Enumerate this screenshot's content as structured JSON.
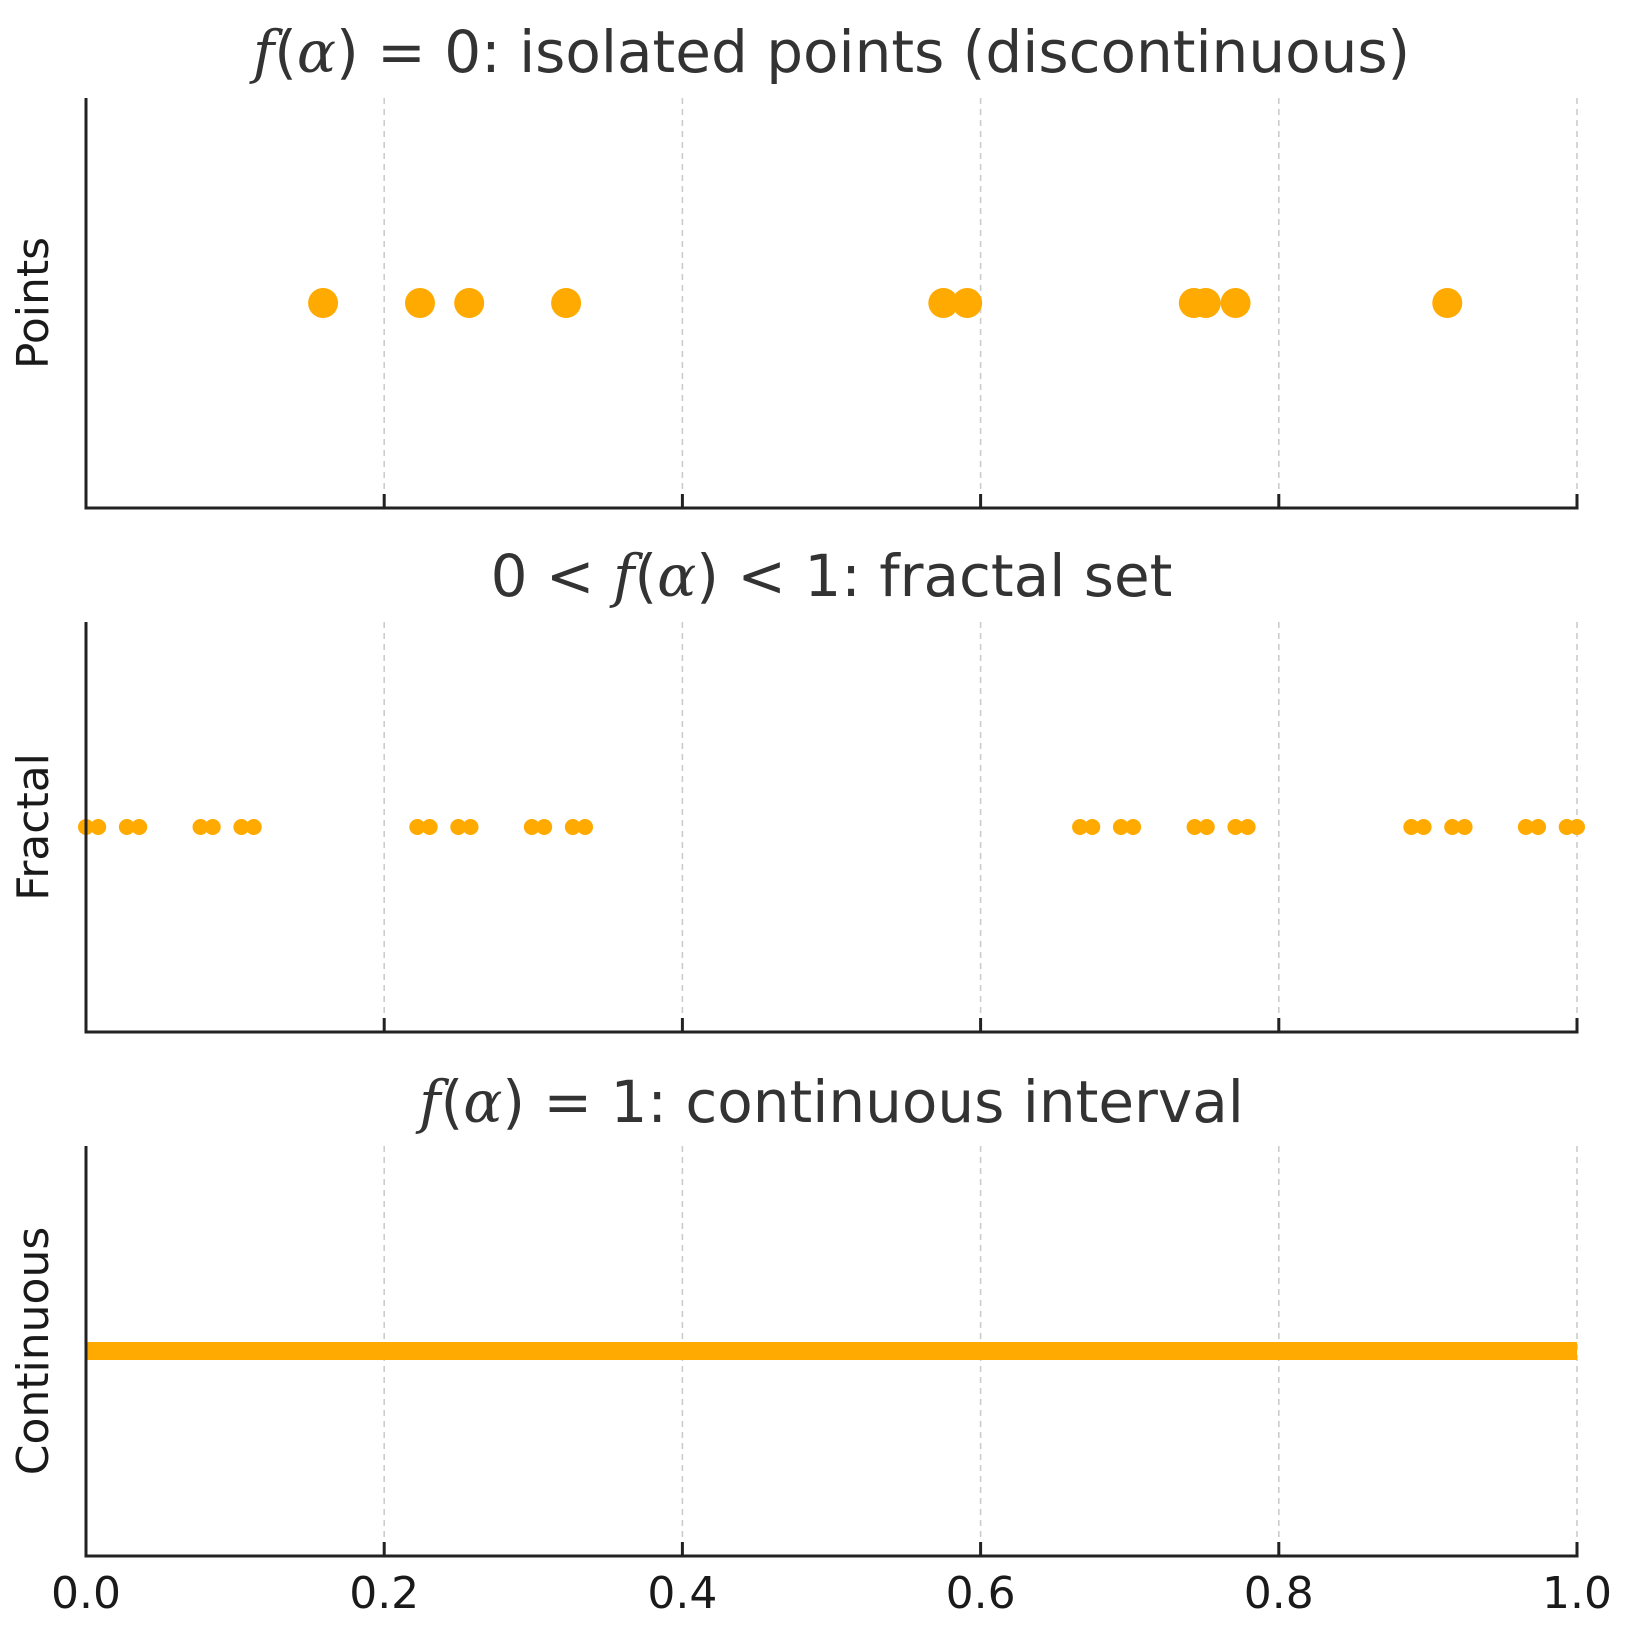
{
  "chart_data": [
    {
      "type": "scatter",
      "title_segments": [
        {
          "text": "f",
          "italic": true
        },
        {
          "text": "(",
          "italic": false
        },
        {
          "text": "α",
          "italic": true
        },
        {
          "text": ") = 0: isolated points (discontinuous)",
          "italic": false
        }
      ],
      "ylabel": "Points",
      "xlim": [
        0,
        1
      ],
      "x": [
        0.159,
        0.224,
        0.257,
        0.322,
        0.575,
        0.591,
        0.743,
        0.751,
        0.771,
        0.913
      ],
      "y": [
        0.5,
        0.5,
        0.5,
        0.5,
        0.5,
        0.5,
        0.5,
        0.5,
        0.5,
        0.5
      ],
      "marker": "large",
      "color": "#FFAA00",
      "grid_x": true,
      "show_x_tick_labels": false
    },
    {
      "type": "scatter",
      "title_segments": [
        {
          "text": "0 < ",
          "italic": false
        },
        {
          "text": "f",
          "italic": true
        },
        {
          "text": "(",
          "italic": false
        },
        {
          "text": "α",
          "italic": true
        },
        {
          "text": ") < 1: fractal set",
          "italic": false
        }
      ],
      "ylabel": "Fractal",
      "xlim": [
        0,
        1
      ],
      "x": [
        0.0,
        0.0082,
        0.0274,
        0.0357,
        0.0768,
        0.085,
        0.1042,
        0.1125,
        0.2222,
        0.2305,
        0.2497,
        0.2579,
        0.299,
        0.3073,
        0.3265,
        0.3347,
        0.6667,
        0.6749,
        0.6941,
        0.7023,
        0.7435,
        0.7517,
        0.7709,
        0.7791,
        0.8889,
        0.8971,
        0.9163,
        0.9246,
        0.9657,
        0.9739,
        0.9931,
        1.0
      ],
      "y": [
        0.5,
        0.5,
        0.5,
        0.5,
        0.5,
        0.5,
        0.5,
        0.5,
        0.5,
        0.5,
        0.5,
        0.5,
        0.5,
        0.5,
        0.5,
        0.5,
        0.5,
        0.5,
        0.5,
        0.5,
        0.5,
        0.5,
        0.5,
        0.5,
        0.5,
        0.5,
        0.5,
        0.5,
        0.5,
        0.5,
        0.5,
        0.5
      ],
      "marker": "small",
      "color": "#FFAA00",
      "grid_x": true,
      "show_x_tick_labels": false
    },
    {
      "type": "line",
      "title_segments": [
        {
          "text": "f",
          "italic": true
        },
        {
          "text": "(",
          "italic": false
        },
        {
          "text": "α",
          "italic": true
        },
        {
          "text": ") = 1: continuous interval",
          "italic": false
        }
      ],
      "ylabel": "Continuous",
      "xlim": [
        0,
        1
      ],
      "x": [
        0,
        1
      ],
      "y": [
        0.5,
        0.5
      ],
      "color": "#FFAA00",
      "grid_x": true,
      "show_x_tick_labels": true
    }
  ],
  "x_ticks": [
    {
      "value": 0.0,
      "label": "0.0"
    },
    {
      "value": 0.2,
      "label": "0.2"
    },
    {
      "value": 0.4,
      "label": "0.4"
    },
    {
      "value": 0.6,
      "label": "0.6"
    },
    {
      "value": 0.8,
      "label": "0.8"
    },
    {
      "value": 1.0,
      "label": "1.0"
    }
  ]
}
